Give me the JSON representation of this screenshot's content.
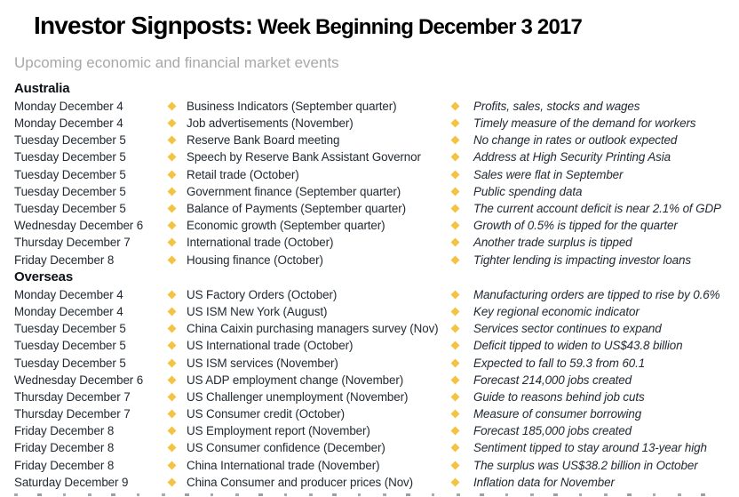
{
  "header": {
    "title_primary": "Investor Signposts:",
    "title_secondary": " Week Beginning December 3 2017",
    "subtitle": "Upcoming economic and financial market events"
  },
  "colors": {
    "bullet_accent": "#f3c444",
    "body_text": "#222a33",
    "subtitle_text": "#a8a8a8",
    "title_text": "#000000"
  },
  "icons": {
    "row_bullet": "diamond-bullet-icon"
  },
  "sections": [
    {
      "heading": "Australia",
      "rows": [
        {
          "date": "Monday December 4",
          "event": "Business Indicators (September quarter)",
          "comment": "Profits, sales, stocks and wages"
        },
        {
          "date": "Monday December 4",
          "event": "Job advertisements (November)",
          "comment": "Timely measure of the demand for workers"
        },
        {
          "date": "Tuesday December 5",
          "event": "Reserve Bank Board meeting",
          "comment": "No change in rates or outlook expected"
        },
        {
          "date": "Tuesday December 5",
          "event": "Speech by Reserve Bank Assistant Governor",
          "comment": "Address at High Security Printing Asia"
        },
        {
          "date": "Tuesday December 5",
          "event": "Retail trade (October)",
          "comment": "Sales were flat in September"
        },
        {
          "date": "Tuesday December 5",
          "event": "Government finance (September quarter)",
          "comment": "Public spending data"
        },
        {
          "date": "Tuesday December 5",
          "event": "Balance of Payments (September quarter)",
          "comment": "The current account deficit is near 2.1% of GDP"
        },
        {
          "date": "Wednesday December 6",
          "event": "Economic growth (September quarter)",
          "comment": "Growth of 0.5% is tipped for the quarter"
        },
        {
          "date": "Thursday December 7",
          "event": "International trade (October)",
          "comment": "Another trade surplus is tipped"
        },
        {
          "date": "Friday December 8",
          "event": "Housing finance (October)",
          "comment": "Tighter lending is impacting investor loans"
        }
      ]
    },
    {
      "heading": "Overseas",
      "rows": [
        {
          "date": "Monday December 4",
          "event": "US Factory Orders (October)",
          "comment": "Manufacturing orders are tipped to rise by 0.6%"
        },
        {
          "date": "Monday December 4",
          "event": "US ISM New York (August)",
          "comment": "Key regional economic indicator"
        },
        {
          "date": "Tuesday December 5",
          "event": "China Caixin purchasing managers survey (Nov)",
          "comment": "Services sector continues to expand"
        },
        {
          "date": "Tuesday December 5",
          "event": "US International trade (October)",
          "comment": "Deficit tipped to widen to US$43.8 billion"
        },
        {
          "date": "Tuesday December 5",
          "event": "US ISM services (November)",
          "comment": "Expected to fall to 59.3 from 60.1"
        },
        {
          "date": "Wednesday December 6",
          "event": "US ADP employment change (November)",
          "comment": "Forecast 214,000 jobs created"
        },
        {
          "date": "Thursday December 7",
          "event": "US Challenger unemployment (November)",
          "comment": "Guide to reasons behind job cuts"
        },
        {
          "date": "Thursday December 7",
          "event": "US Consumer credit (October)",
          "comment": "Measure of consumer borrowing"
        },
        {
          "date": "Friday December 8",
          "event": "US Employment report (November)",
          "comment": "Forecast 185,000 jobs created"
        },
        {
          "date": "Friday December 8",
          "event": "US Consumer confidence (December)",
          "comment": "Sentiment tipped to stay around 13-year high"
        },
        {
          "date": "Friday December 8",
          "event": "China International trade (November)",
          "comment": "The surplus was US$38.2 billion in October"
        },
        {
          "date": "Saturday December 9",
          "event": "China Consumer and producer prices (Nov)",
          "comment": "Inflation data for November"
        }
      ]
    }
  ]
}
